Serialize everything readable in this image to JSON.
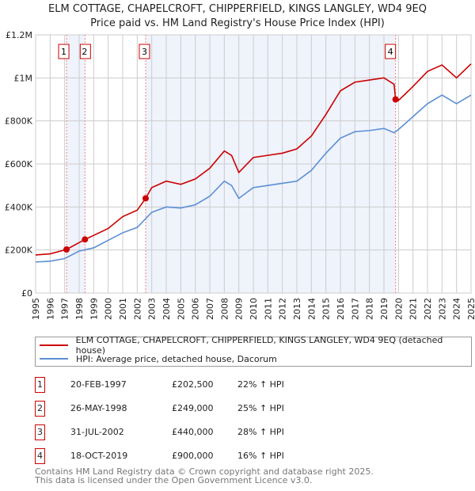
{
  "chart_data": {
    "type": "line",
    "title": "ELM COTTAGE, CHAPELCROFT, CHIPPERFIELD, KINGS LANGLEY, WD4 9EQ",
    "subtitle": "Price paid vs. HM Land Registry's House Price Index (HPI)",
    "xlim": [
      1995,
      2025
    ],
    "ylim": [
      0,
      1200000
    ],
    "x_ticks": [
      "1995",
      "1996",
      "1997",
      "1998",
      "1999",
      "2000",
      "2001",
      "2002",
      "2003",
      "2004",
      "2005",
      "2006",
      "2007",
      "2008",
      "2009",
      "2010",
      "2011",
      "2012",
      "2013",
      "2014",
      "2015",
      "2016",
      "2017",
      "2018",
      "2019",
      "2020",
      "2021",
      "2022",
      "2023",
      "2024",
      "2025"
    ],
    "y_ticks": [
      {
        "v": 0,
        "label": "£0"
      },
      {
        "v": 200000,
        "label": "£200K"
      },
      {
        "v": 400000,
        "label": "£400K"
      },
      {
        "v": 600000,
        "label": "£600K"
      },
      {
        "v": 800000,
        "label": "£800K"
      },
      {
        "v": 1000000,
        "label": "£1M"
      },
      {
        "v": 1200000,
        "label": "£1.2M"
      }
    ],
    "grid": true,
    "series": [
      {
        "name": "ELM COTTAGE, CHAPELCROFT, CHIPPERFIELD, KINGS LANGLEY, WD4 9EQ (detached house)",
        "color": "#cc0000",
        "x": [
          1995,
          1996,
          1997.13,
          1998.4,
          1999,
          2000,
          2001,
          2002,
          2002.58,
          2003,
          2004,
          2005,
          2006,
          2007,
          2008,
          2008.5,
          2009,
          2010,
          2011,
          2012,
          2013,
          2014,
          2015,
          2016,
          2017,
          2018,
          2019,
          2019.7,
          2019.8,
          2020,
          2021,
          2022,
          2023,
          2024,
          2025
        ],
        "y": [
          177000,
          182000,
          202500,
          249000,
          268000,
          300000,
          355000,
          385000,
          440000,
          490000,
          520000,
          505000,
          530000,
          580000,
          660000,
          640000,
          560000,
          630000,
          640000,
          650000,
          670000,
          730000,
          830000,
          940000,
          980000,
          990000,
          1000000,
          970000,
          900000,
          895000,
          960000,
          1030000,
          1060000,
          1000000,
          1065000
        ]
      },
      {
        "name": "HPI: Average price, detached house, Dacorum",
        "color": "#5b8fd4",
        "x": [
          1995,
          1996,
          1997,
          1998,
          1999,
          2000,
          2001,
          2002,
          2003,
          2004,
          2005,
          2006,
          2007,
          2008,
          2008.5,
          2009,
          2010,
          2011,
          2012,
          2013,
          2014,
          2015,
          2016,
          2017,
          2018,
          2019,
          2019.7,
          2020,
          2021,
          2022,
          2023,
          2024,
          2025
        ],
        "y": [
          144000,
          148000,
          160000,
          195000,
          210000,
          245000,
          280000,
          305000,
          375000,
          400000,
          395000,
          410000,
          450000,
          520000,
          500000,
          440000,
          490000,
          500000,
          510000,
          520000,
          570000,
          650000,
          720000,
          750000,
          755000,
          765000,
          745000,
          760000,
          820000,
          880000,
          920000,
          880000,
          920000
        ]
      }
    ],
    "sales": [
      {
        "n": "1",
        "x": 1997.13,
        "y": 202500,
        "date": "20-FEB-1997",
        "price": "£202,500",
        "hpi": "22% ↑ HPI"
      },
      {
        "n": "2",
        "x": 1998.4,
        "y": 249000,
        "date": "26-MAY-1998",
        "price": "£249,000",
        "hpi": "25% ↑ HPI"
      },
      {
        "n": "3",
        "x": 2002.58,
        "y": 440000,
        "date": "31-JUL-2002",
        "price": "£440,000",
        "hpi": "28% ↑ HPI"
      },
      {
        "n": "4",
        "x": 2019.8,
        "y": 900000,
        "date": "18-OCT-2019",
        "price": "£900,000",
        "hpi": "16% ↑ HPI"
      }
    ],
    "shaded": [
      [
        1997.13,
        1998.4
      ],
      [
        2002.58,
        2019.8
      ]
    ]
  },
  "legend": {
    "red": "ELM COTTAGE, CHAPELCROFT, CHIPPERFIELD, KINGS LANGLEY, WD4 9EQ (detached house)",
    "blue": "HPI: Average price, detached house, Dacorum"
  },
  "footer": [
    "Contains HM Land Registry data © Crown copyright and database right 2025.",
    "This data is licensed under the Open Government Licence v3.0."
  ]
}
